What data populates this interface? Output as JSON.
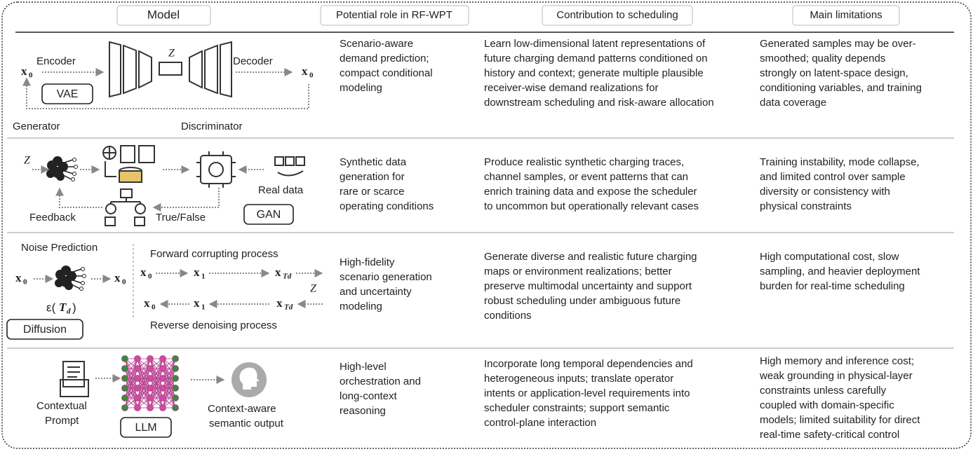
{
  "header": {
    "model": "Model",
    "role": "Potential role in RF-WPT",
    "contribution": "Contribution to scheduling",
    "limitations": "Main limitations"
  },
  "rows": [
    {
      "model": {
        "name": "VAE",
        "encoder": "Encoder",
        "latent": "Z",
        "decoder": "Decoder",
        "input": {
          "base": "x",
          "sub": "0"
        },
        "output": {
          "base": "x",
          "sub": "0"
        }
      },
      "role": [
        "Scenario-aware",
        "demand prediction;",
        "compact conditional",
        "modeling"
      ],
      "contribution": [
        "Learn low-dimensional latent representations of",
        "future charging demand patterns conditioned on",
        "history and context; generate multiple plausible",
        "receiver-wise demand realizations for",
        "downstream scheduling and risk-aware allocation"
      ],
      "limitations": [
        "Generated samples may be over-",
        "smoothed; quality depends",
        "strongly on latent-space design,",
        "conditioning variables, and training",
        "data coverage"
      ]
    },
    {
      "model": {
        "name": "GAN",
        "generator": "Generator",
        "discriminator": "Discriminator",
        "latent": "Z",
        "real": "Real data",
        "feedback": "Feedback",
        "verdict": "True/False"
      },
      "role": [
        "Synthetic data",
        "generation for",
        "rare or scarce",
        "operating conditions"
      ],
      "contribution": [
        "Produce realistic synthetic charging traces,",
        "channel samples, or event patterns that can",
        "enrich training data and expose the scheduler",
        "to uncommon but operationally relevant cases"
      ],
      "limitations": [
        "Training instability, mode collapse,",
        "and limited control over sample",
        "diversity or consistency with",
        "physical constraints"
      ]
    },
    {
      "model": {
        "name": "Diffusion",
        "noise": "Noise Prediction",
        "input": {
          "base": "x",
          "sub": "0"
        },
        "output": {
          "base": "x",
          "sub": "0"
        },
        "epsilon": {
          "prefix": "ε(",
          "base": "T",
          "sub": "d",
          "suffix": ")"
        },
        "forward_label": "Forward corrupting process",
        "reverse_label": "Reverse denoising process",
        "latent": "Z",
        "forward": [
          {
            "base": "x",
            "sub": "0"
          },
          {
            "base": "x",
            "sub": "1"
          },
          {
            "base": "x",
            "sub": "Td"
          }
        ],
        "reverse": [
          {
            "base": "x",
            "sub": "0"
          },
          {
            "base": "x",
            "sub": "1"
          },
          {
            "base": "x",
            "sub": "Td"
          }
        ]
      },
      "role": [
        "High-fidelity",
        "scenario generation",
        "and uncertainty",
        "modeling"
      ],
      "contribution": [
        "Generate diverse and realistic future charging",
        "maps or environment realizations; better",
        "preserve multimodal uncertainty and support",
        "robust scheduling under ambiguous future",
        "conditions"
      ],
      "limitations": [
        "High computational cost, slow",
        "sampling, and heavier deployment",
        "burden for real-time scheduling"
      ]
    },
    {
      "model": {
        "name": "LLM",
        "prompt": [
          "Contextual",
          "Prompt"
        ],
        "output": [
          "Context-aware",
          "semantic output"
        ]
      },
      "role": [
        "High-level",
        "orchestration and",
        "long-context",
        "reasoning"
      ],
      "contribution": [
        "Incorporate long temporal dependencies and",
        "heterogeneous inputs; translate operator",
        "intents or application-level requirements into",
        "scheduler constraints; support semantic",
        "control-plane interaction"
      ],
      "limitations": [
        "High memory and inference cost;",
        "weak grounding in physical-layer",
        "constraints unless carefully",
        "coupled with domain-specific",
        "models; limited suitability for direct",
        "real-time safety-critical control"
      ]
    }
  ]
}
